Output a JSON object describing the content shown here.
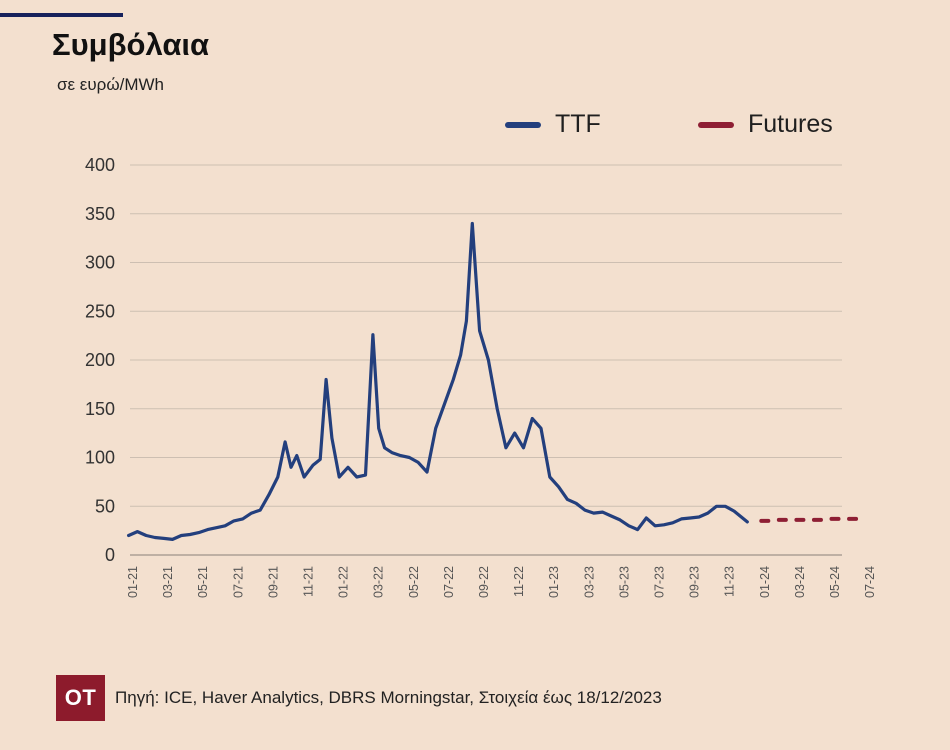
{
  "chart_data": {
    "type": "line",
    "title": "Συμβόλαια",
    "subtitle": "σε ευρώ/MWh",
    "ylim": [
      0,
      400
    ],
    "y_ticks": [
      0,
      50,
      100,
      150,
      200,
      250,
      300,
      350,
      400
    ],
    "x_ticks": [
      "01-21",
      "03-21",
      "05-21",
      "07-21",
      "09-21",
      "11-21",
      "01-22",
      "03-22",
      "05-22",
      "07-22",
      "09-22",
      "11-22",
      "01-23",
      "03-23",
      "05-23",
      "07-23",
      "09-23",
      "11-23",
      "01-24",
      "03-24",
      "05-24",
      "07-24"
    ],
    "grid": true,
    "legend_position": "top-right",
    "series": [
      {
        "name": "TTF",
        "color": "#233f7d",
        "style": "solid",
        "points": [
          [
            "01-21",
            20
          ],
          [
            "01-21",
            24
          ],
          [
            "02-21",
            20
          ],
          [
            "02-21",
            18
          ],
          [
            "03-21",
            17
          ],
          [
            "03-21",
            16
          ],
          [
            "04-21",
            20
          ],
          [
            "04-21",
            21
          ],
          [
            "05-21",
            23
          ],
          [
            "05-21",
            26
          ],
          [
            "06-21",
            28
          ],
          [
            "06-21",
            30
          ],
          [
            "07-21",
            35
          ],
          [
            "07-21",
            37
          ],
          [
            "08-21",
            43
          ],
          [
            "08-21",
            46
          ],
          [
            "09-21",
            62
          ],
          [
            "09-21",
            80
          ],
          [
            "10-21",
            116
          ],
          [
            "10-21",
            90
          ],
          [
            "10-21",
            102
          ],
          [
            "11-21",
            80
          ],
          [
            "11-21",
            92
          ],
          [
            "12-21",
            98
          ],
          [
            "12-21",
            180
          ],
          [
            "12-21",
            120
          ],
          [
            "01-22",
            80
          ],
          [
            "01-22",
            90
          ],
          [
            "02-22",
            80
          ],
          [
            "02-22",
            82
          ],
          [
            "03-22",
            226
          ],
          [
            "03-22",
            130
          ],
          [
            "03-22",
            110
          ],
          [
            "04-22",
            105
          ],
          [
            "04-22",
            102
          ],
          [
            "05-22",
            100
          ],
          [
            "05-22",
            95
          ],
          [
            "06-22",
            85
          ],
          [
            "06-22",
            130
          ],
          [
            "07-22",
            155
          ],
          [
            "07-22",
            180
          ],
          [
            "08-22",
            205
          ],
          [
            "08-22",
            240
          ],
          [
            "08-22",
            340
          ],
          [
            "09-22",
            230
          ],
          [
            "09-22",
            200
          ],
          [
            "10-22",
            150
          ],
          [
            "10-22",
            110
          ],
          [
            "11-22",
            125
          ],
          [
            "11-22",
            110
          ],
          [
            "12-22",
            140
          ],
          [
            "12-22",
            130
          ],
          [
            "01-23",
            80
          ],
          [
            "01-23",
            70
          ],
          [
            "02-23",
            57
          ],
          [
            "02-23",
            53
          ],
          [
            "03-23",
            46
          ],
          [
            "03-23",
            43
          ],
          [
            "04-23",
            44
          ],
          [
            "04-23",
            40
          ],
          [
            "05-23",
            36
          ],
          [
            "05-23",
            30
          ],
          [
            "06-23",
            26
          ],
          [
            "06-23",
            38
          ],
          [
            "07-23",
            30
          ],
          [
            "07-23",
            31
          ],
          [
            "08-23",
            33
          ],
          [
            "08-23",
            37
          ],
          [
            "09-23",
            38
          ],
          [
            "09-23",
            39
          ],
          [
            "10-23",
            43
          ],
          [
            "10-23",
            50
          ],
          [
            "11-23",
            50
          ],
          [
            "11-23",
            45
          ],
          [
            "12-23",
            34
          ]
        ]
      },
      {
        "name": "Futures",
        "color": "#8e1f34",
        "style": "dotted",
        "points": [
          [
            "01-24",
            35
          ],
          [
            "02-24",
            36
          ],
          [
            "03-24",
            36
          ],
          [
            "04-24",
            36
          ],
          [
            "05-24",
            37
          ],
          [
            "06-24",
            37
          ]
        ]
      }
    ]
  },
  "footer": {
    "logo_text": "OT",
    "source": "Πηγή: ICE, Haver Analytics, DBRS Morningstar, Στοιχεία έως 18/12/2023"
  }
}
